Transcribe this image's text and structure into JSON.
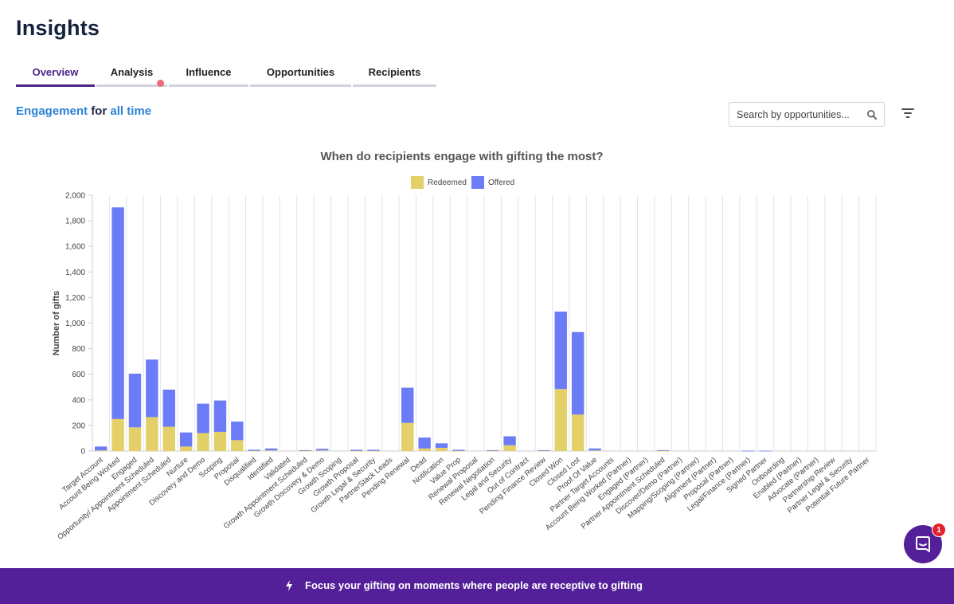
{
  "page": {
    "title": "Insights"
  },
  "tabs": [
    {
      "label": "Overview",
      "active": true
    },
    {
      "label": "Analysis",
      "active": false,
      "notification_dot": true
    },
    {
      "label": "Influence",
      "active": false
    },
    {
      "label": "Opportunities",
      "active": false
    },
    {
      "label": "Recipients",
      "active": false
    }
  ],
  "engagement": {
    "metric": "Engagement",
    "connector": "for",
    "range": "all time"
  },
  "search": {
    "placeholder": "Search by opportunities...",
    "icon": "search-icon"
  },
  "filter": {
    "icon": "filter-icon"
  },
  "chart_data": {
    "type": "bar",
    "stacked": true,
    "title": "When do recipients engage with gifting the most?",
    "ylabel": "Number of gifts",
    "xlabel": "",
    "ylim": [
      0,
      2000
    ],
    "yticks": [
      "2,000",
      "1,800",
      "1,600",
      "1,400",
      "1,200",
      "1,000",
      "800",
      "600",
      "400",
      "200",
      "0"
    ],
    "legend_position": "top-center",
    "grid": true,
    "categories": [
      "Target Account",
      "Account Being Worked",
      "Engaged",
      "Opportunity/ Appointment Scheduled",
      "Appointment Scheduled",
      "Nurture",
      "Discovery and Demo",
      "Scoping",
      "Proposal",
      "Disqualified",
      "Identified",
      "Validated",
      "Growth Appointment Scheduled",
      "Growth Discovery & Demo",
      "Growth Scoping",
      "Growth Proposal",
      "Growth Legal & Security",
      "PartnerStack Leads",
      "Pending Renewal",
      "Dead",
      "Notification",
      "Value Prop",
      "Renewal Proposal",
      "Renewal Negotiation",
      "Legal and Security",
      "Out of Contract",
      "Pending Finance Review",
      "Closed Won",
      "Closed Lost",
      "Proof Of Value",
      "Partner Target Accounts",
      "Account Being Worked (Partner)",
      "Engaged (Partner)",
      "Partner Appointment Scheduled",
      "Discover/Demo (Partner)",
      "Mapping/Scoping (Partner)",
      "Alignment (Partner)",
      "Proposal (Partner)",
      "Legal/Finance (Partner)",
      "Signed Partner",
      "Onboarding",
      "Enabled (Partner)",
      "Advocate (Partner)",
      "Partnership Review",
      "Partner Legal & Security",
      "Potential Future Partner"
    ],
    "series": [
      {
        "name": "Redeemed",
        "color": "#e3d068",
        "values": [
          5,
          250,
          185,
          265,
          190,
          35,
          140,
          150,
          85,
          2,
          5,
          0,
          2,
          5,
          0,
          2,
          2,
          0,
          220,
          20,
          25,
          2,
          0,
          2,
          45,
          0,
          2,
          485,
          285,
          5,
          0,
          0,
          0,
          2,
          0,
          0,
          0,
          0,
          0,
          0,
          0,
          0,
          0,
          0,
          0,
          0
        ]
      },
      {
        "name": "Offered",
        "color": "#6c7cf7",
        "values": [
          30,
          1655,
          420,
          450,
          290,
          110,
          230,
          245,
          145,
          8,
          15,
          0,
          5,
          12,
          0,
          8,
          8,
          0,
          275,
          85,
          35,
          8,
          0,
          5,
          70,
          0,
          5,
          605,
          645,
          15,
          0,
          0,
          0,
          5,
          0,
          0,
          0,
          0,
          2,
          2,
          0,
          0,
          0,
          0,
          0,
          0
        ]
      }
    ]
  },
  "banner": {
    "text": "Focus your gifting on moments where people are receptive to gifting",
    "icon": "lightning-icon"
  },
  "chat": {
    "badge_count": "1",
    "icon": "chat-icon"
  }
}
